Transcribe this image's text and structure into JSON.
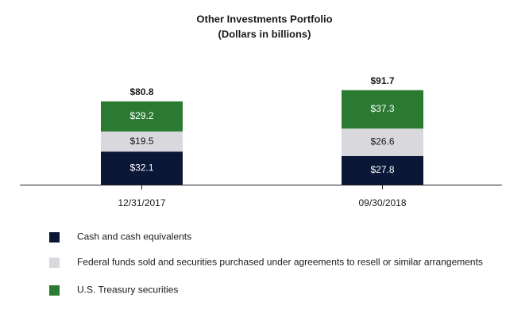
{
  "chart_data": {
    "type": "stacked_bar",
    "title": "Other Investments Portfolio",
    "subtitle": "(Dollars in billions)",
    "categories": [
      "12/31/2017",
      "09/30/2018"
    ],
    "series": [
      {
        "name": "Cash and cash equivalents",
        "color": "#0b1736",
        "label_color": "#ffffff",
        "values": [
          32.1,
          27.8
        ],
        "value_labels": [
          "$32.1",
          "$27.8"
        ]
      },
      {
        "name": "Federal funds sold and securities purchased under agreements to resell or similar arrangements",
        "color": "#d9d8dc",
        "label_color": "#1a1a1a",
        "values": [
          19.5,
          26.6
        ],
        "value_labels": [
          "$19.5",
          "$26.6"
        ]
      },
      {
        "name": "U.S. Treasury securities",
        "color": "#2b7a31",
        "label_color": "#ffffff",
        "values": [
          29.2,
          37.3
        ],
        "value_labels": [
          "$29.2",
          "$37.3"
        ]
      }
    ],
    "totals": {
      "values": [
        80.8,
        91.7
      ],
      "value_labels": [
        "$80.8",
        "$91.7"
      ]
    },
    "grid": false
  }
}
